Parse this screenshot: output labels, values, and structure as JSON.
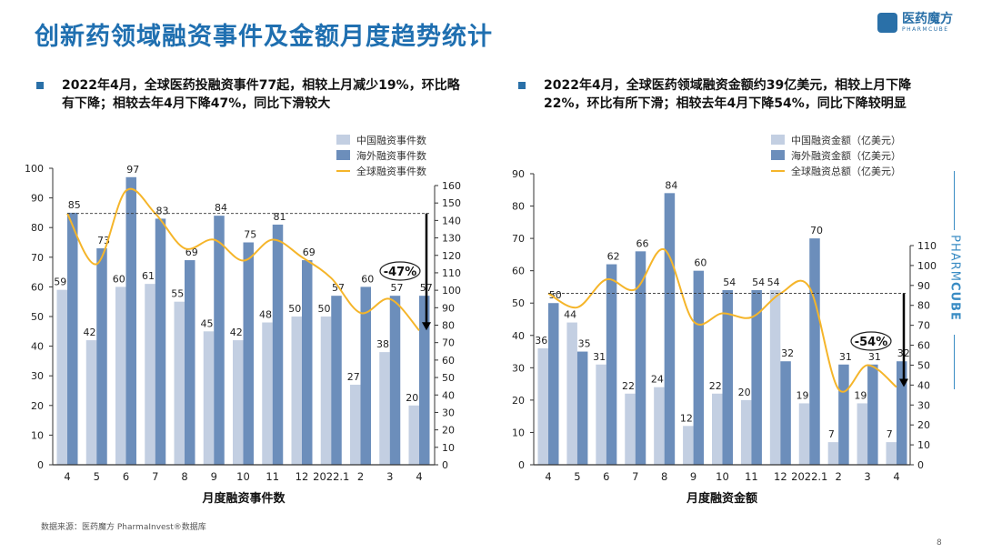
{
  "title": "创新药领域融资事件及金额月度趋势统计",
  "logo": {
    "cn": "医药魔方",
    "en": "PHARMCUBE"
  },
  "side_brand": {
    "part1": "PHARM",
    "part2": "CUBE"
  },
  "bullets": [
    "2022年4月，全球医药投融资事件77起，相较上月减少19%，环比略有下降；相较去年4月下降47%，同比下滑较大",
    "2022年4月，全球医药领域融资金额约39亿美元，相较上月下降22%，环比有所下滑；相较去年4月下降54%，同比下降较明显"
  ],
  "source": "数据来源：医药魔方 PharmaInvest®数据库",
  "page_number": "8",
  "colors": {
    "china": "#c3cfe2",
    "overseas": "#6c8ebb",
    "global": "#f5b52a",
    "title": "#1f6fb0"
  },
  "chart_data": [
    {
      "type": "bar",
      "title": "月度融资事件数",
      "xlabel": "月度融资事件数",
      "categories": [
        "4",
        "5",
        "6",
        "7",
        "8",
        "9",
        "10",
        "11",
        "12",
        "2022.1",
        "2",
        "3",
        "4"
      ],
      "ylim_left": [
        0,
        100
      ],
      "yticks_left": [
        0,
        10,
        20,
        30,
        40,
        50,
        60,
        70,
        80,
        90,
        100
      ],
      "ylim_right": [
        0,
        160
      ],
      "yticks_right": [
        0,
        10,
        20,
        30,
        40,
        50,
        60,
        70,
        80,
        90,
        100,
        110,
        120,
        130,
        140,
        150,
        160
      ],
      "legend_position": "top-right",
      "series": [
        {
          "name": "中国融资事件数",
          "kind": "bar",
          "axis": "left",
          "values": [
            59,
            42,
            60,
            61,
            55,
            45,
            42,
            48,
            50,
            50,
            27,
            38,
            20
          ]
        },
        {
          "name": "海外融资事件数",
          "kind": "bar",
          "axis": "left",
          "values": [
            85,
            73,
            97,
            83,
            69,
            84,
            75,
            81,
            69,
            57,
            60,
            57,
            57
          ]
        },
        {
          "name": "全球融资事件数",
          "kind": "line",
          "axis": "right",
          "values": [
            144,
            115,
            157,
            144,
            124,
            129,
            117,
            129,
            119,
            107,
            87,
            95,
            77
          ]
        }
      ],
      "annotation": {
        "text": "-47%",
        "from_index": 0,
        "to_index": 12
      }
    },
    {
      "type": "bar",
      "title": "月度融资金额",
      "xlabel": "月度融资金额",
      "categories": [
        "4",
        "5",
        "6",
        "7",
        "8",
        "9",
        "10",
        "11",
        "12",
        "2022.1",
        "2",
        "3",
        "4"
      ],
      "ylim_left": [
        0,
        90
      ],
      "yticks_left": [
        0,
        10,
        20,
        30,
        40,
        50,
        60,
        70,
        80,
        90
      ],
      "ylim_right": [
        0,
        110
      ],
      "yticks_right": [
        0,
        10,
        20,
        30,
        40,
        50,
        60,
        70,
        80,
        90,
        100,
        110
      ],
      "legend_position": "top-right",
      "series": [
        {
          "name": "中国融资金额（亿美元）",
          "kind": "bar",
          "axis": "left",
          "values": [
            36,
            44,
            31,
            22,
            24,
            12,
            22,
            20,
            54,
            19,
            7,
            19,
            7
          ]
        },
        {
          "name": "海外融资金额（亿美元）",
          "kind": "bar",
          "axis": "left",
          "values": [
            50,
            35,
            62,
            66,
            84,
            60,
            54,
            54,
            32,
            70,
            31,
            31,
            32
          ]
        },
        {
          "name": "全球融资总额（亿美元）",
          "kind": "line",
          "axis": "right",
          "values": [
            86,
            79,
            93,
            88,
            108,
            72,
            76,
            74,
            86,
            89,
            38,
            50,
            39
          ]
        }
      ],
      "annotation": {
        "text": "-54%",
        "from_index": 0,
        "to_index": 12
      }
    }
  ]
}
